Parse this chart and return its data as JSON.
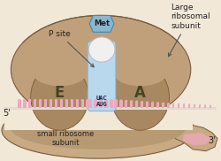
{
  "bg_color": "#f2e8d8",
  "large_su_color": "#c0a07a",
  "large_su_edge": "#7a5a3a",
  "large_su_inner": "#a88860",
  "small_su_color": "#c8aa84",
  "small_su_edge": "#7a5a3a",
  "small_su_inner": "#b89a72",
  "tunnel_color": "#b8d8ee",
  "trna_circle_color": "#f0f0f0",
  "met_fill": "#88b8d0",
  "met_edge": "#4488aa",
  "met_text_color": "#222222",
  "pink": "#f0a8c0",
  "mrna_color": "#f0ede0",
  "text_color": "#222222",
  "arrow_color": "#555555",
  "codon_color": "#222244",
  "label_5": "5'",
  "label_3": "3'",
  "p_site": "P site",
  "large_label": "Large\nribosomal\nsubunit",
  "small_label": "small ribosome\nsubunit",
  "e_label": "E",
  "a_label": "A",
  "met_text": "Met",
  "codon_top": "UAC",
  "codon_bot": "AUG"
}
